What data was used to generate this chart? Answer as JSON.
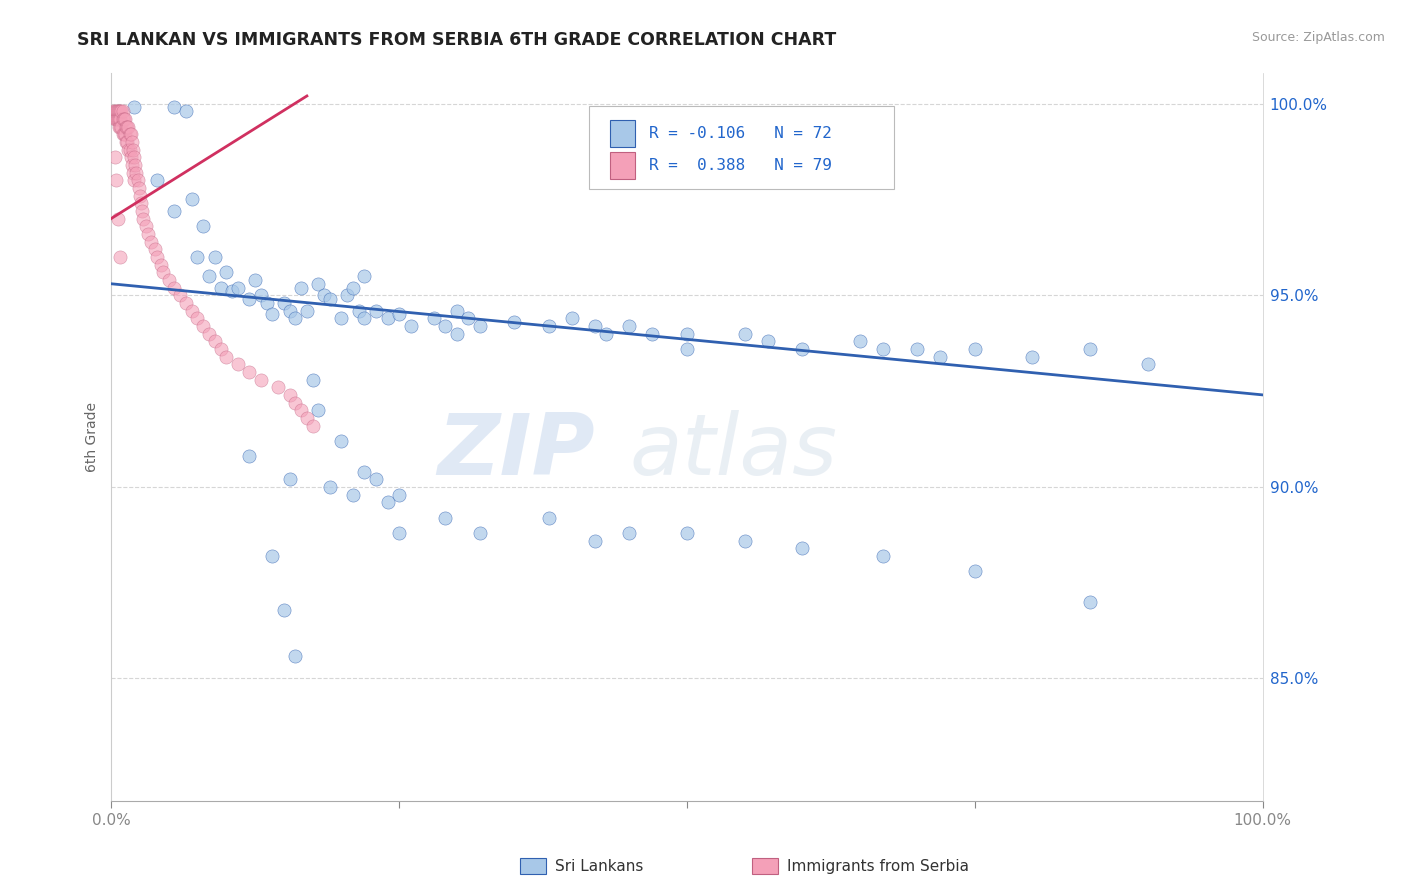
{
  "title": "SRI LANKAN VS IMMIGRANTS FROM SERBIA 6TH GRADE CORRELATION CHART",
  "source": "Source: ZipAtlas.com",
  "ylabel": "6th Grade",
  "xlim": [
    0.0,
    1.0
  ],
  "ylim": [
    0.818,
    1.008
  ],
  "yticks": [
    0.85,
    0.9,
    0.95,
    1.0
  ],
  "ytick_labels": [
    "85.0%",
    "90.0%",
    "95.0%",
    "100.0%"
  ],
  "legend_r1": "R = -0.106",
  "legend_n1": "N = 72",
  "legend_r2": "R =  0.388",
  "legend_n2": "N = 79",
  "blue_color": "#a8c8e8",
  "pink_color": "#f4a0b8",
  "trend_blue": "#3060b0",
  "trend_pink": "#d03060",
  "watermark_zip": "ZIP",
  "watermark_atlas": "atlas",
  "blue_trend_x0": 0.0,
  "blue_trend_y0": 0.953,
  "blue_trend_x1": 1.0,
  "blue_trend_y1": 0.924,
  "pink_trend_x0": 0.0,
  "pink_trend_y0": 0.97,
  "pink_trend_x1": 0.17,
  "pink_trend_y1": 1.002,
  "blue_x": [
    0.02,
    0.04,
    0.055,
    0.055,
    0.065,
    0.07,
    0.075,
    0.08,
    0.085,
    0.09,
    0.095,
    0.1,
    0.105,
    0.11,
    0.12,
    0.125,
    0.13,
    0.135,
    0.14,
    0.15,
    0.155,
    0.16,
    0.165,
    0.17,
    0.18,
    0.185,
    0.19,
    0.2,
    0.205,
    0.21,
    0.215,
    0.22,
    0.22,
    0.23,
    0.24,
    0.25,
    0.26,
    0.28,
    0.29,
    0.3,
    0.3,
    0.31,
    0.32,
    0.35,
    0.38,
    0.4,
    0.42,
    0.43,
    0.45,
    0.47,
    0.5,
    0.5,
    0.55,
    0.57,
    0.6,
    0.65,
    0.67,
    0.7,
    0.72,
    0.75,
    0.8,
    0.85,
    0.9,
    0.175,
    0.18,
    0.2,
    0.22,
    0.24,
    0.25,
    0.14,
    0.15,
    0.16
  ],
  "blue_y": [
    0.999,
    0.98,
    0.972,
    0.999,
    0.998,
    0.975,
    0.96,
    0.968,
    0.955,
    0.96,
    0.952,
    0.956,
    0.951,
    0.952,
    0.949,
    0.954,
    0.95,
    0.948,
    0.945,
    0.948,
    0.946,
    0.944,
    0.952,
    0.946,
    0.953,
    0.95,
    0.949,
    0.944,
    0.95,
    0.952,
    0.946,
    0.944,
    0.955,
    0.946,
    0.944,
    0.945,
    0.942,
    0.944,
    0.942,
    0.94,
    0.946,
    0.944,
    0.942,
    0.943,
    0.942,
    0.944,
    0.942,
    0.94,
    0.942,
    0.94,
    0.94,
    0.936,
    0.94,
    0.938,
    0.936,
    0.938,
    0.936,
    0.936,
    0.934,
    0.936,
    0.934,
    0.936,
    0.932,
    0.928,
    0.92,
    0.912,
    0.904,
    0.896,
    0.888,
    0.882,
    0.868,
    0.856
  ],
  "blue_x2": [
    0.12,
    0.155,
    0.19,
    0.21,
    0.23,
    0.25,
    0.29,
    0.32,
    0.38,
    0.42,
    0.45,
    0.5,
    0.55,
    0.6,
    0.67,
    0.75,
    0.85
  ],
  "blue_y2": [
    0.908,
    0.902,
    0.9,
    0.898,
    0.902,
    0.898,
    0.892,
    0.888,
    0.892,
    0.886,
    0.888,
    0.888,
    0.886,
    0.884,
    0.882,
    0.878,
    0.87
  ],
  "pink_x": [
    0.002,
    0.003,
    0.003,
    0.004,
    0.004,
    0.005,
    0.005,
    0.006,
    0.006,
    0.007,
    0.007,
    0.007,
    0.008,
    0.008,
    0.008,
    0.009,
    0.009,
    0.01,
    0.01,
    0.01,
    0.011,
    0.011,
    0.012,
    0.012,
    0.013,
    0.013,
    0.014,
    0.014,
    0.015,
    0.015,
    0.016,
    0.016,
    0.017,
    0.017,
    0.018,
    0.018,
    0.019,
    0.019,
    0.02,
    0.02,
    0.021,
    0.022,
    0.023,
    0.024,
    0.025,
    0.026,
    0.027,
    0.028,
    0.03,
    0.032,
    0.035,
    0.038,
    0.04,
    0.043,
    0.045,
    0.05,
    0.055,
    0.06,
    0.065,
    0.07,
    0.075,
    0.08,
    0.085,
    0.09,
    0.095,
    0.1,
    0.11,
    0.12,
    0.13,
    0.145,
    0.155,
    0.16,
    0.165,
    0.17,
    0.175,
    0.003,
    0.004,
    0.006,
    0.008
  ],
  "pink_y": [
    0.998,
    0.998,
    0.996,
    0.998,
    0.996,
    0.998,
    0.996,
    0.998,
    0.996,
    0.998,
    0.996,
    0.994,
    0.998,
    0.996,
    0.994,
    0.998,
    0.994,
    0.998,
    0.996,
    0.992,
    0.996,
    0.992,
    0.996,
    0.992,
    0.994,
    0.99,
    0.994,
    0.99,
    0.994,
    0.988,
    0.992,
    0.988,
    0.992,
    0.986,
    0.99,
    0.984,
    0.988,
    0.982,
    0.986,
    0.98,
    0.984,
    0.982,
    0.98,
    0.978,
    0.976,
    0.974,
    0.972,
    0.97,
    0.968,
    0.966,
    0.964,
    0.962,
    0.96,
    0.958,
    0.956,
    0.954,
    0.952,
    0.95,
    0.948,
    0.946,
    0.944,
    0.942,
    0.94,
    0.938,
    0.936,
    0.934,
    0.932,
    0.93,
    0.928,
    0.926,
    0.924,
    0.922,
    0.92,
    0.918,
    0.916,
    0.986,
    0.98,
    0.97,
    0.96
  ]
}
